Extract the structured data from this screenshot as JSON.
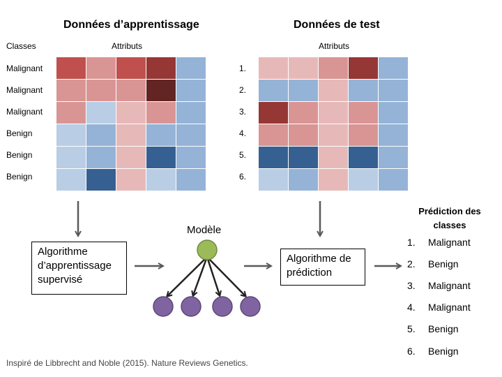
{
  "training": {
    "title": "Données d’apprentissage",
    "classes_header": "Classes",
    "attributes_header": "Attributs",
    "labels": [
      "Malignant",
      "Malignant",
      "Malignant",
      "Benign",
      "Benign",
      "Benign"
    ]
  },
  "test": {
    "title": "Données de test",
    "attributes_header": "Attributs",
    "labels": [
      "1.",
      "2.",
      "3.",
      "4.",
      "5.",
      "6."
    ]
  },
  "algo_training": {
    "line1": "Algorithme",
    "line2": "d’apprentissage",
    "line3": "supervisé"
  },
  "model": {
    "label": "Modèle"
  },
  "algo_prediction": {
    "line1": "Algorithme de",
    "line2": "prédiction"
  },
  "prediction": {
    "title_line1": "Prédiction des",
    "title_line2": "classes",
    "items": [
      {
        "num": "1.",
        "label": "Malignant"
      },
      {
        "num": "2.",
        "label": "Benign"
      },
      {
        "num": "3.",
        "label": "Malignant"
      },
      {
        "num": "4.",
        "label": "Malignant"
      },
      {
        "num": "5.",
        "label": "Benign"
      },
      {
        "num": "6.",
        "label": "Benign"
      }
    ]
  },
  "caption": "Inspiré de Libbrecht and Noble (2015). Nature Reviews Genetics.",
  "colors": {
    "r1": "#c0504d",
    "r2": "#d99594",
    "r3": "#e6b9b8",
    "r4": "#953735",
    "r5": "#632523",
    "b1": "#b9cde5",
    "b2": "#95b3d7",
    "b3": "#376092",
    "node_green": "#9bbb59",
    "node_purple": "#8064a2",
    "arrow": "#595959"
  },
  "training_matrix": [
    [
      "r1",
      "r2",
      "r1",
      "r4",
      "b2"
    ],
    [
      "r2",
      "r2",
      "r2",
      "r5",
      "b2"
    ],
    [
      "r2",
      "b1",
      "r3",
      "r2",
      "b2"
    ],
    [
      "b1",
      "b2",
      "r3",
      "b2",
      "b2"
    ],
    [
      "b1",
      "b2",
      "r3",
      "b3",
      "b2"
    ],
    [
      "b1",
      "b3",
      "r3",
      "b1",
      "b2"
    ]
  ],
  "test_matrix": [
    [
      "r3",
      "r3",
      "r2",
      "r4",
      "b2"
    ],
    [
      "b2",
      "b2",
      "r3",
      "b2",
      "b2"
    ],
    [
      "r4",
      "r2",
      "r3",
      "r2",
      "b2"
    ],
    [
      "r2",
      "r2",
      "r3",
      "r2",
      "b2"
    ],
    [
      "b3",
      "b3",
      "r3",
      "b3",
      "b2"
    ],
    [
      "b1",
      "b2",
      "r3",
      "b1",
      "b2"
    ]
  ]
}
